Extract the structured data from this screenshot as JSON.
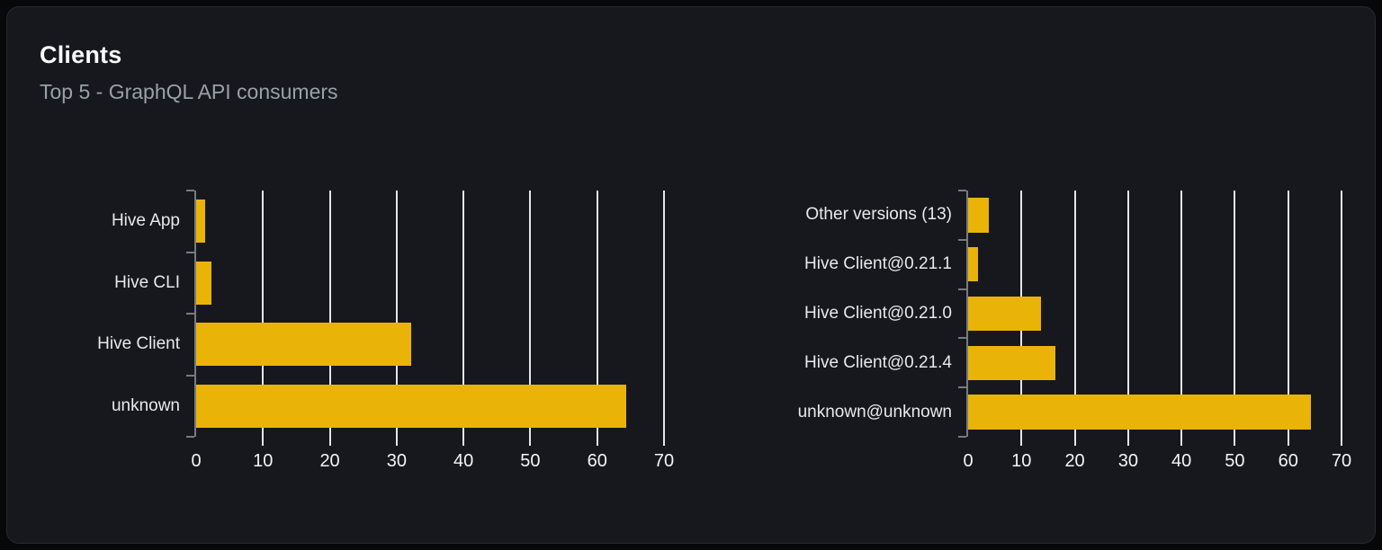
{
  "card": {
    "title": "Clients",
    "subtitle": "Top 5 - GraphQL API consumers"
  },
  "colors": {
    "page_background": "#070809",
    "card_background": "#16181d",
    "card_border": "#262a31",
    "bar": "#eab308",
    "gridline": "#e3e6ec",
    "axis": "#767b82",
    "category_label": "#e7e9ec",
    "tick_label": "#f3f4f6",
    "title": "#fafafa",
    "subtitle": "#9aa0aa"
  },
  "chart_data": [
    {
      "type": "bar",
      "orientation": "horizontal",
      "name": "clients",
      "categories": [
        "Hive App",
        "Hive CLI",
        "Hive Client",
        "unknown"
      ],
      "values": [
        1.3,
        2.3,
        32.2,
        64.4
      ],
      "xlim": [
        0,
        70
      ],
      "xticks": [
        0,
        10,
        20,
        30,
        40,
        50,
        60,
        70
      ],
      "grid": true,
      "legend": false,
      "bar_color": "#eab308",
      "title": "",
      "xlabel": "",
      "ylabel": ""
    },
    {
      "type": "bar",
      "orientation": "horizontal",
      "name": "client-versions",
      "categories": [
        "Other versions (13)",
        "Hive Client@0.21.1",
        "Hive Client@0.21.0",
        "Hive Client@0.21.4",
        "unknown@unknown"
      ],
      "values": [
        3.9,
        1.8,
        13.7,
        16.4,
        64.3
      ],
      "xlim": [
        0,
        70
      ],
      "xticks": [
        0,
        10,
        20,
        30,
        40,
        50,
        60,
        70
      ],
      "grid": true,
      "legend": false,
      "bar_color": "#eab308",
      "title": "",
      "xlabel": "",
      "ylabel": ""
    }
  ]
}
